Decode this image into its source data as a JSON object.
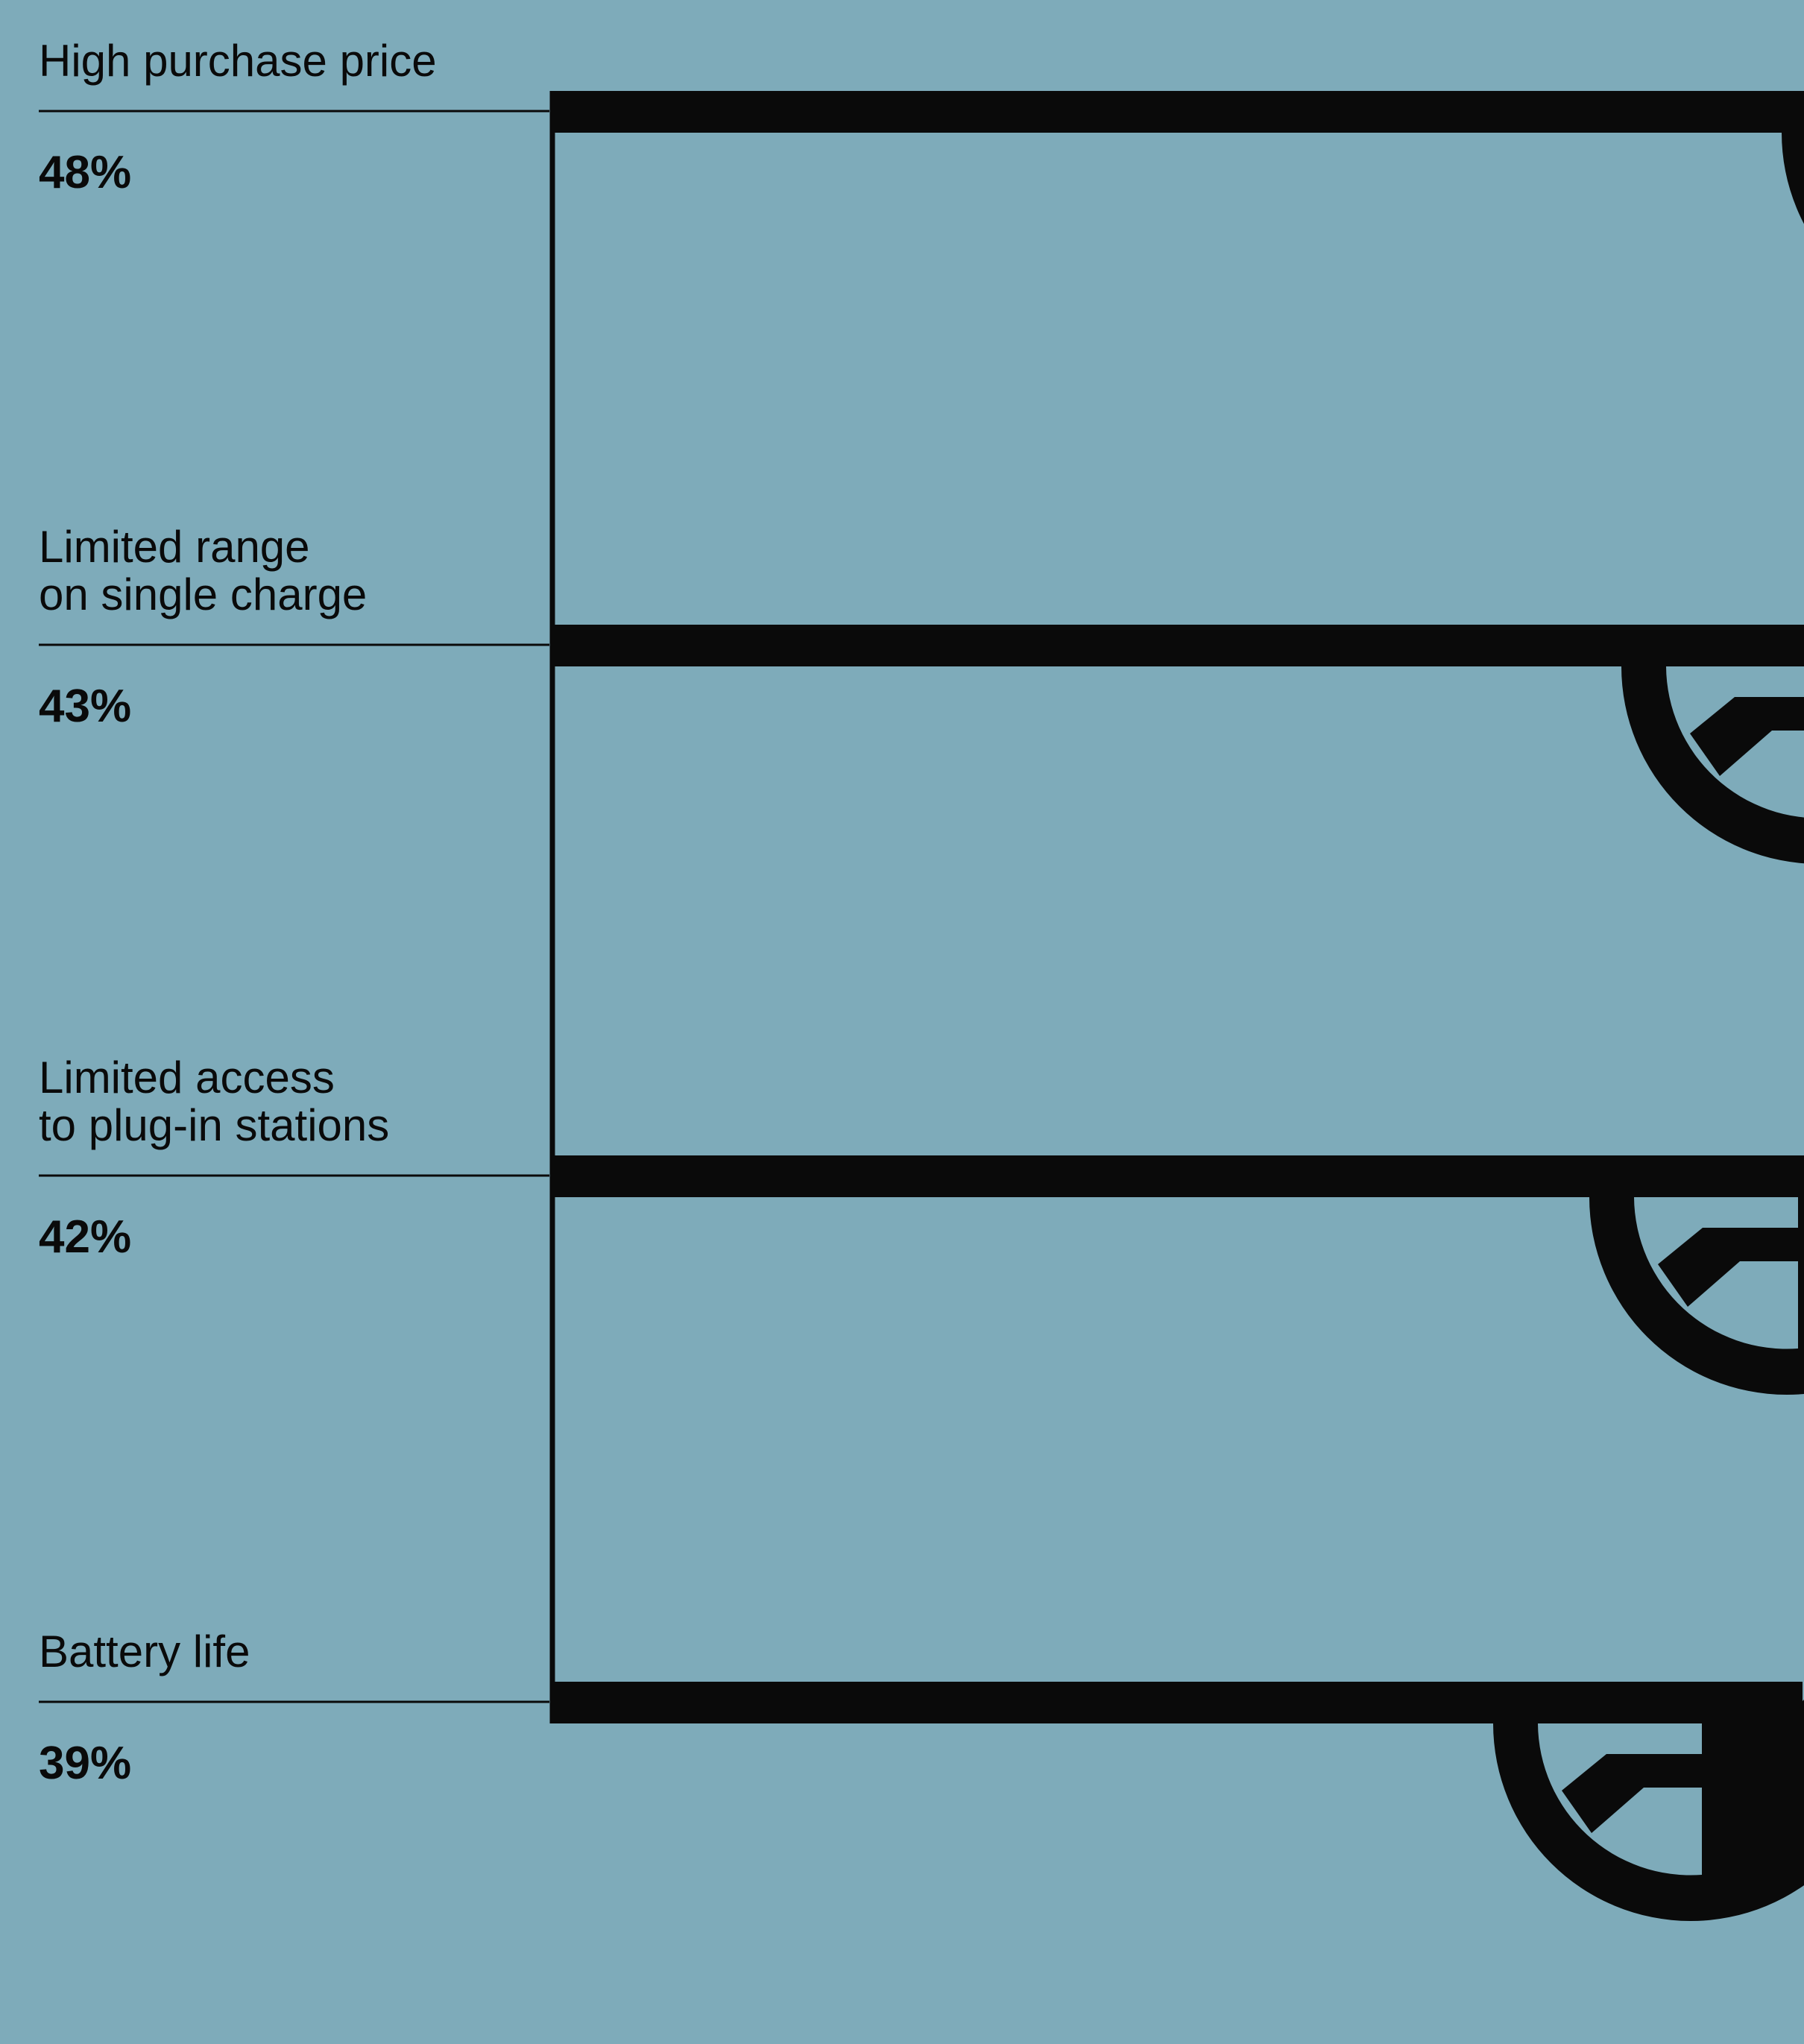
{
  "chart_data": {
    "type": "bar",
    "title": "",
    "xlabel": "",
    "ylabel": "",
    "unit": "%",
    "categories": [
      [
        "High purchase price"
      ],
      [
        "Limited range",
        "on single charge"
      ],
      [
        "Limited access",
        "to plug-in stations"
      ],
      [
        "Battery life"
      ]
    ],
    "values": [
      48,
      43,
      42,
      39
    ],
    "value_labels": [
      "48%",
      "43%",
      "42%",
      "39%"
    ],
    "grid": false,
    "legend": "none",
    "mark": "fuel-nozzle-with-drop",
    "colors": {
      "background": "#7eabba",
      "ink": "#0a0a0a"
    }
  }
}
